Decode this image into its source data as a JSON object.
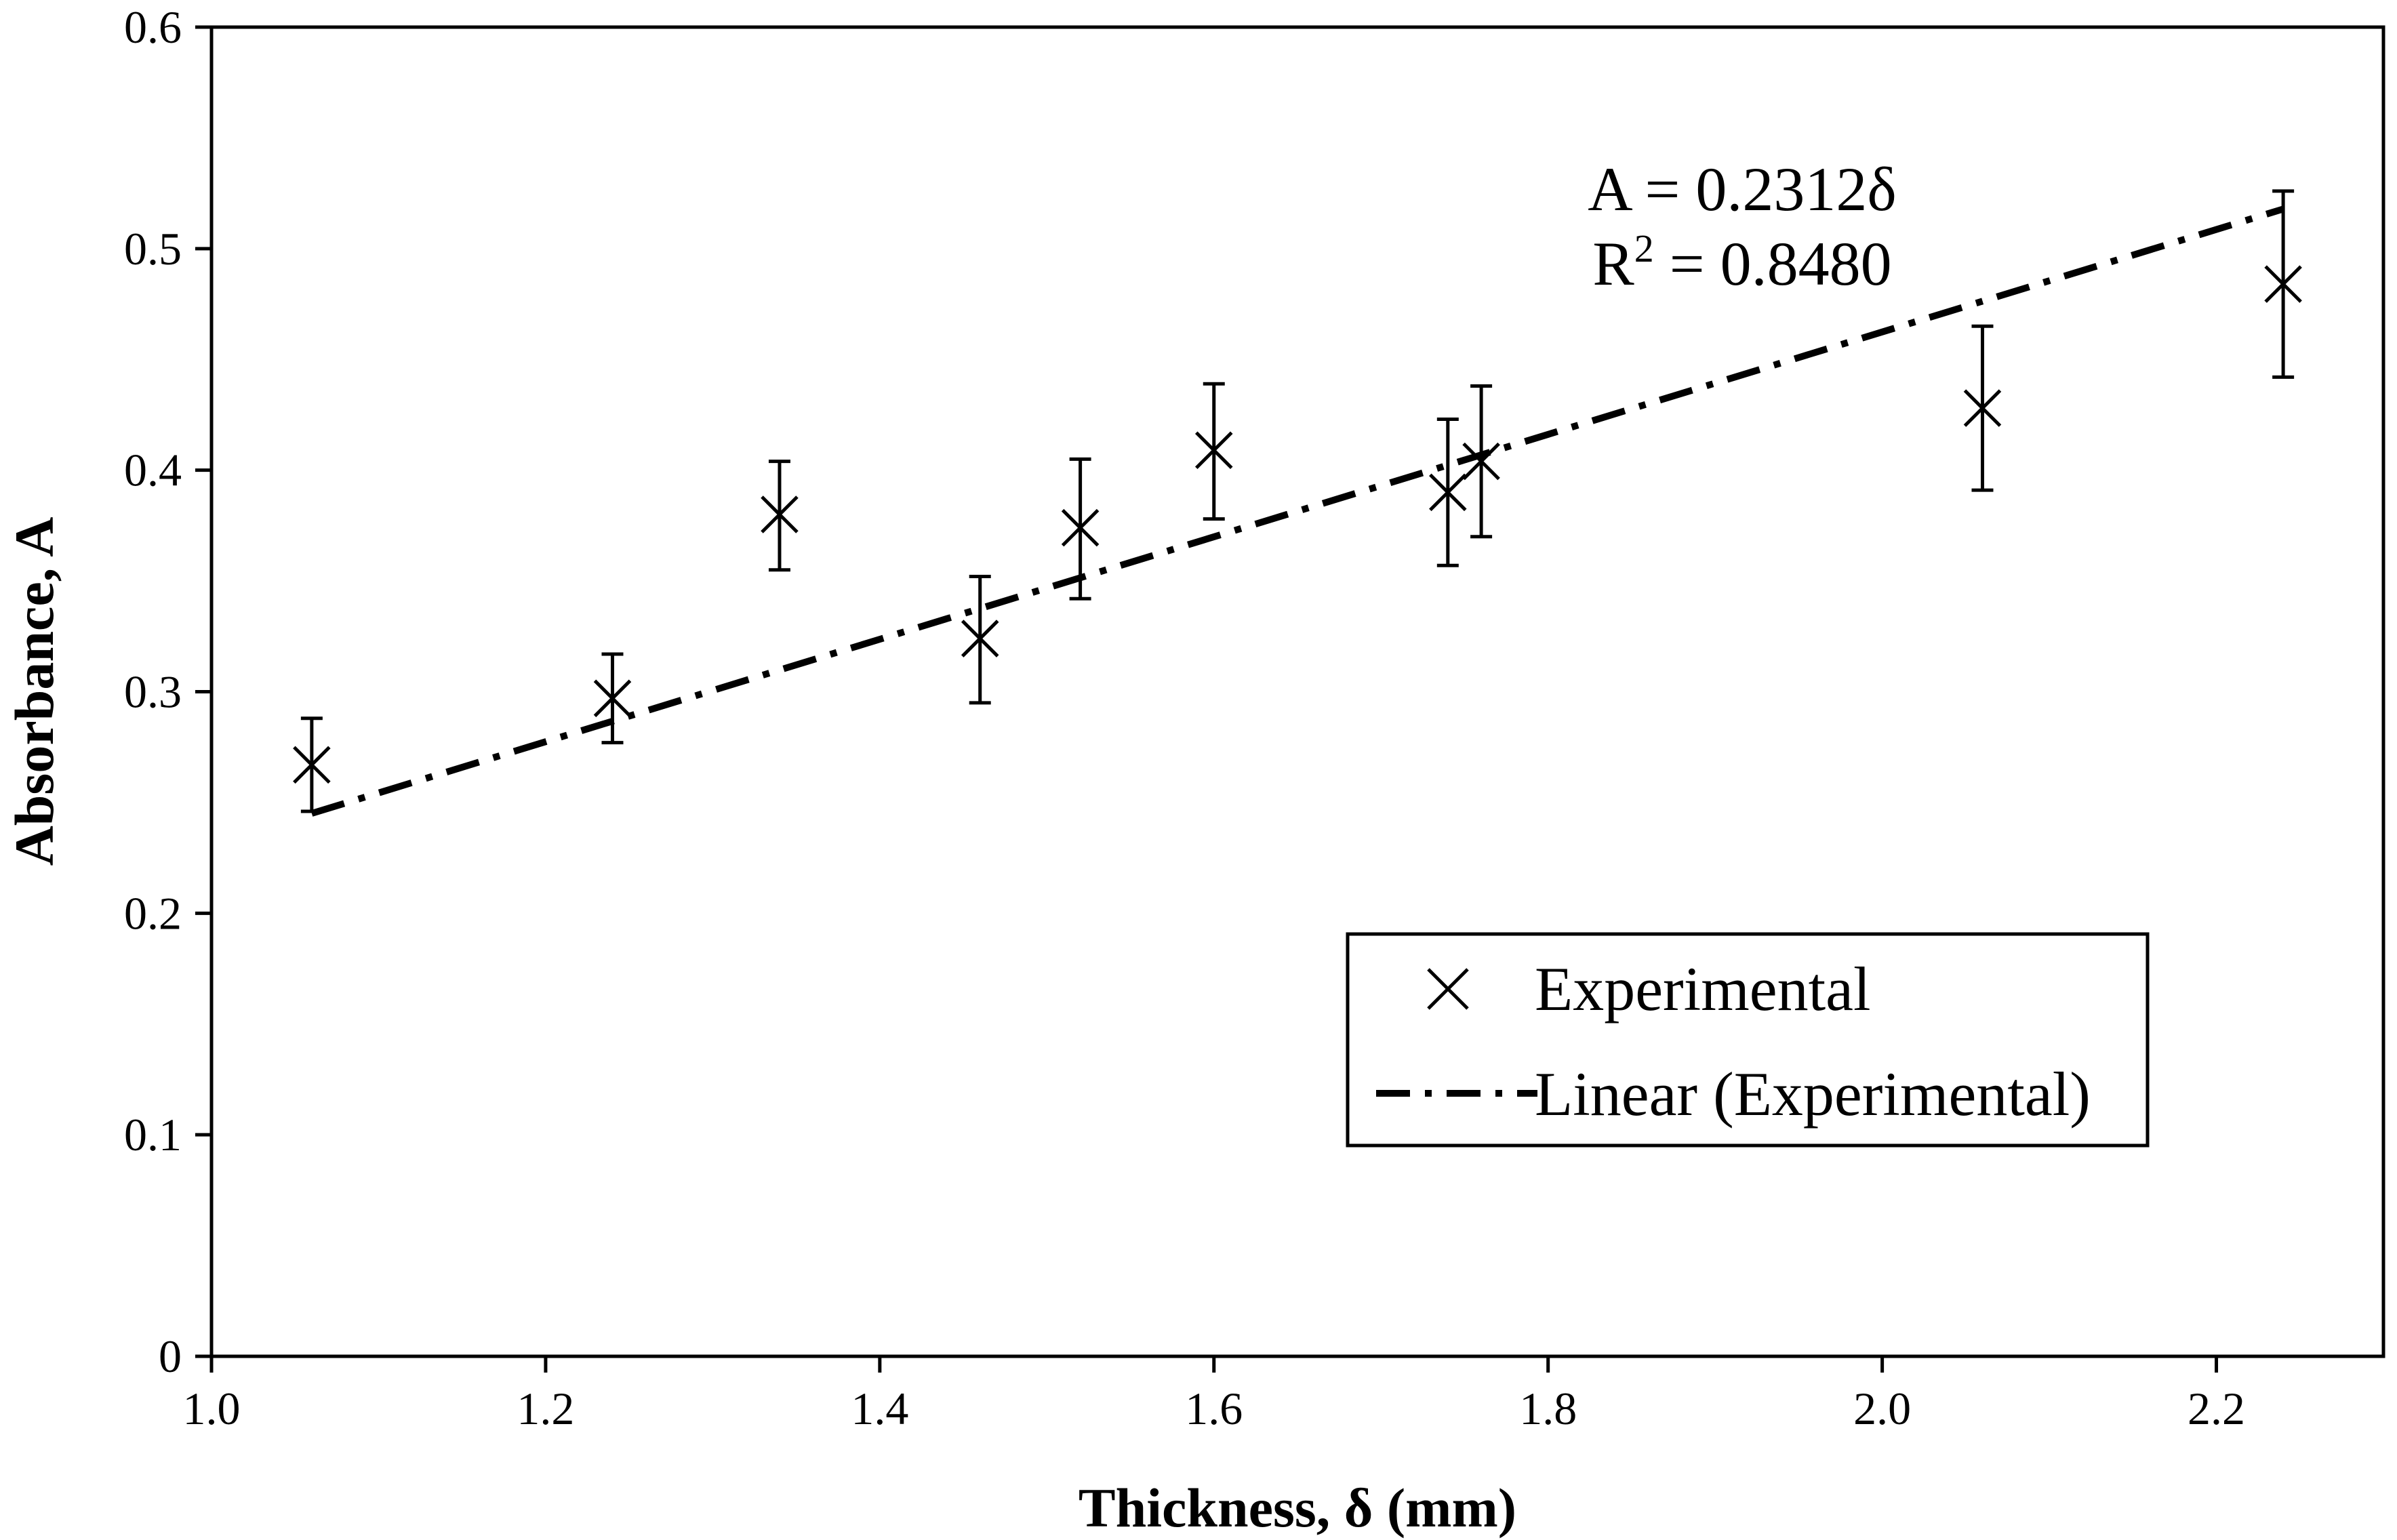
{
  "chart_data": {
    "type": "scatter",
    "title": "",
    "xlabel": "Thickness, δ (mm)",
    "ylabel": "Absorbance, A",
    "xlim": [
      1.0,
      2.3
    ],
    "ylim": [
      0,
      0.6
    ],
    "x_ticks": [
      1.0,
      1.2,
      1.4,
      1.6,
      1.8,
      2.0,
      2.2
    ],
    "x_tick_labels": [
      "1.0",
      "1.2",
      "1.4",
      "1.6",
      "1.8",
      "2.0",
      "2.2"
    ],
    "y_ticks": [
      0,
      0.1,
      0.2,
      0.3,
      0.4,
      0.5,
      0.6
    ],
    "y_tick_labels": [
      "0",
      "0.1",
      "0.2",
      "0.3",
      "0.4",
      "0.5",
      "0.6"
    ],
    "grid": false,
    "series": [
      {
        "name": "Experimental",
        "marker": "x",
        "x": [
          1.06,
          1.24,
          1.34,
          1.46,
          1.52,
          1.6,
          1.74,
          1.76,
          2.06,
          2.24
        ],
        "y": [
          0.267,
          0.297,
          0.38,
          0.324,
          0.374,
          0.409,
          0.39,
          0.404,
          0.428,
          0.484
        ],
        "error_low": [
          0.246,
          0.277,
          0.355,
          0.295,
          0.342,
          0.378,
          0.357,
          0.37,
          0.391,
          0.442
        ],
        "error_high": [
          0.288,
          0.317,
          0.404,
          0.352,
          0.405,
          0.439,
          0.423,
          0.438,
          0.465,
          0.526
        ]
      },
      {
        "name": "Linear (Experimental)",
        "type": "line",
        "style": "dash-dot",
        "slope": 0.2312,
        "intercept": 0,
        "x_range": [
          1.06,
          2.24
        ]
      }
    ],
    "annotation": {
      "line1": "A = 0.2312δ",
      "r_prefix": "R",
      "r_exp": "2",
      "r_suffix": " = 0.8480"
    },
    "legend": {
      "position": "lower-right",
      "entries": [
        "Experimental",
        "Linear (Experimental)"
      ]
    }
  }
}
